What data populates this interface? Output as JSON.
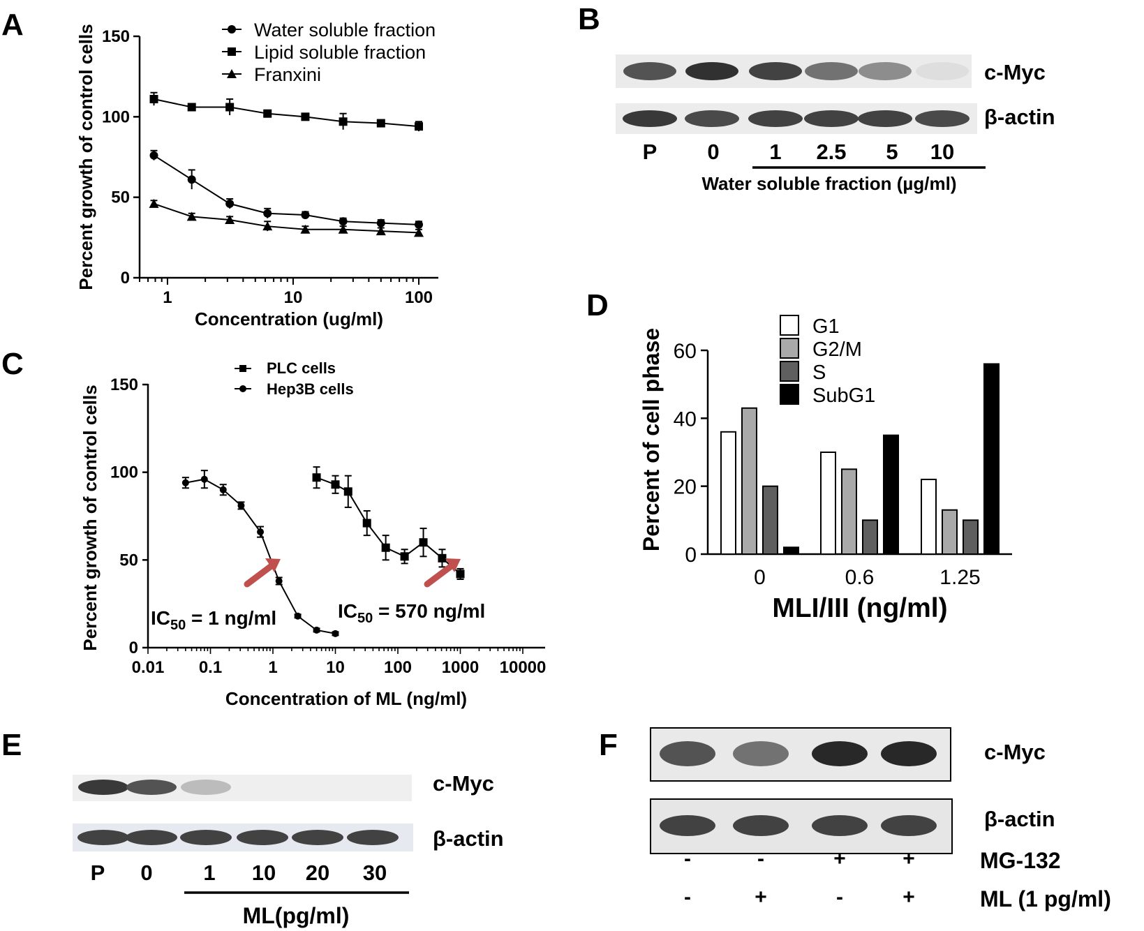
{
  "panels": {
    "A": "A",
    "B": "B",
    "C": "C",
    "D": "D",
    "E": "E",
    "F": "F"
  },
  "chart_data": [
    {
      "panel": "A",
      "type": "line",
      "x_scale": "log",
      "xlabel": "Concentration (ug/ml)",
      "ylabel": "Percent growth of control cells",
      "ylim": [
        0,
        150
      ],
      "xlim": [
        0.6,
        100
      ],
      "xticks": [
        "1",
        "10",
        "100"
      ],
      "yticks": [
        "0",
        "50",
        "100",
        "150"
      ],
      "legend_position": "top-right",
      "series": [
        {
          "name": "Water soluble fraction",
          "marker": "circle",
          "x": [
            0.78,
            1.56,
            3.13,
            6.25,
            12.5,
            25,
            50,
            100
          ],
          "y": [
            76,
            61,
            46,
            40,
            39,
            35,
            34,
            33
          ],
          "err": [
            3,
            6,
            3,
            3,
            2,
            2,
            2,
            2
          ]
        },
        {
          "name": "Lipid soluble fraction",
          "marker": "square",
          "x": [
            0.78,
            1.56,
            3.13,
            6.25,
            12.5,
            25,
            50,
            100
          ],
          "y": [
            111,
            106,
            106,
            102,
            100,
            97,
            96,
            94
          ],
          "err": [
            4,
            2,
            5,
            2,
            2,
            5,
            2,
            3
          ]
        },
        {
          "name": "Franxini",
          "marker": "triangle",
          "x": [
            0.78,
            1.56,
            3.13,
            6.25,
            12.5,
            25,
            50,
            100
          ],
          "y": [
            46,
            38,
            36,
            32,
            30,
            30,
            29,
            28
          ],
          "err": [
            2,
            2,
            2,
            3,
            2,
            2,
            2,
            2
          ]
        }
      ]
    },
    {
      "panel": "C",
      "type": "line",
      "x_scale": "log",
      "xlabel": "Concentration of ML (ng/ml)",
      "ylabel": "Percent growth of control cells",
      "ylim": [
        0,
        150
      ],
      "xlim": [
        0.01,
        10000
      ],
      "xticks": [
        "0.01",
        "0.1",
        "1",
        "10",
        "100",
        "1000",
        "10000"
      ],
      "yticks": [
        "0",
        "50",
        "100",
        "150"
      ],
      "legend_position": "top-center",
      "annotations": {
        "hep3b_ic50": {
          "prefix": "IC",
          "sub": "50",
          "suffix": " = 1 ng/ml",
          "x": 0.8
        },
        "plc_ic50": {
          "prefix": "IC",
          "sub": "50",
          "suffix": " = 570 ng/ml",
          "x": 570
        }
      },
      "series": [
        {
          "name": "PLC cells",
          "marker": "square",
          "x": [
            16,
            32,
            64,
            128,
            256,
            512,
            1000
          ],
          "y": [
            89,
            71,
            57,
            52,
            60,
            51,
            42
          ],
          "err": [
            9,
            7,
            7,
            4,
            8,
            5,
            3
          ],
          "extra": {
            "x": [
              5,
              10
            ],
            "y": [
              97,
              93
            ],
            "err": [
              6,
              5
            ]
          }
        },
        {
          "name": "Hep3B cells",
          "marker": "circle",
          "x": [
            0.04,
            0.08,
            0.16,
            0.31,
            0.63,
            1.25,
            2.5,
            5,
            10
          ],
          "y": [
            94,
            96,
            90,
            81,
            66,
            38,
            18,
            10,
            8
          ],
          "err": [
            3,
            5,
            3,
            2,
            3,
            2,
            1,
            1,
            1
          ]
        }
      ]
    },
    {
      "panel": "D",
      "type": "bar",
      "xlabel": "MLI/III (ng/ml)",
      "ylabel": "Percent of cell phase",
      "ylim": [
        0,
        60
      ],
      "yticks": [
        "0",
        "20",
        "40",
        "60"
      ],
      "categories": [
        "0",
        "0.6",
        "1.25"
      ],
      "legend_position": "top-left",
      "series": [
        {
          "name": "G1",
          "color": "#ffffff",
          "values": [
            36,
            30,
            22
          ]
        },
        {
          "name": "G2/M",
          "color": "#a9a9a9",
          "values": [
            43,
            25,
            13
          ]
        },
        {
          "name": "S",
          "color": "#5f5f5f",
          "values": [
            20,
            10,
            10
          ]
        },
        {
          "name": "SubG1",
          "color": "#000000",
          "values": [
            2,
            35,
            56
          ]
        }
      ]
    }
  ],
  "blot_B": {
    "band_labels": [
      "c-Myc",
      "β-actin"
    ],
    "lanes": [
      "P",
      "0",
      "1",
      "2.5",
      "5",
      "10"
    ],
    "xlabel": "Water soluble fraction (µg/ml)",
    "cmyc_intensity": [
      0.75,
      0.95,
      0.85,
      0.6,
      0.5,
      0.05
    ],
    "actin_intensity": [
      0.9,
      0.8,
      0.85,
      0.85,
      0.85,
      0.8
    ]
  },
  "blot_E": {
    "band_labels": [
      "c-Myc",
      "β-actin"
    ],
    "lanes": [
      "P",
      "0",
      "1",
      "10",
      "20",
      "30"
    ],
    "xlabel": "ML(pg/ml)",
    "cmyc_intensity": [
      0.9,
      0.75,
      0.3,
      0.0,
      0.0,
      0.0
    ],
    "actin_intensity": [
      0.85,
      0.85,
      0.85,
      0.85,
      0.85,
      0.85
    ]
  },
  "blot_F": {
    "band_labels": [
      "c-Myc",
      "β-actin"
    ],
    "rows": [
      {
        "label": "MG-132",
        "values": [
          "-",
          "-",
          "+",
          "+"
        ]
      },
      {
        "label": "ML (1 pg/ml)",
        "values": [
          "-",
          "+",
          "-",
          "+"
        ]
      }
    ],
    "cmyc_intensity": [
      0.75,
      0.6,
      1.0,
      1.0
    ],
    "actin_intensity": [
      0.85,
      0.85,
      0.85,
      0.85
    ]
  }
}
